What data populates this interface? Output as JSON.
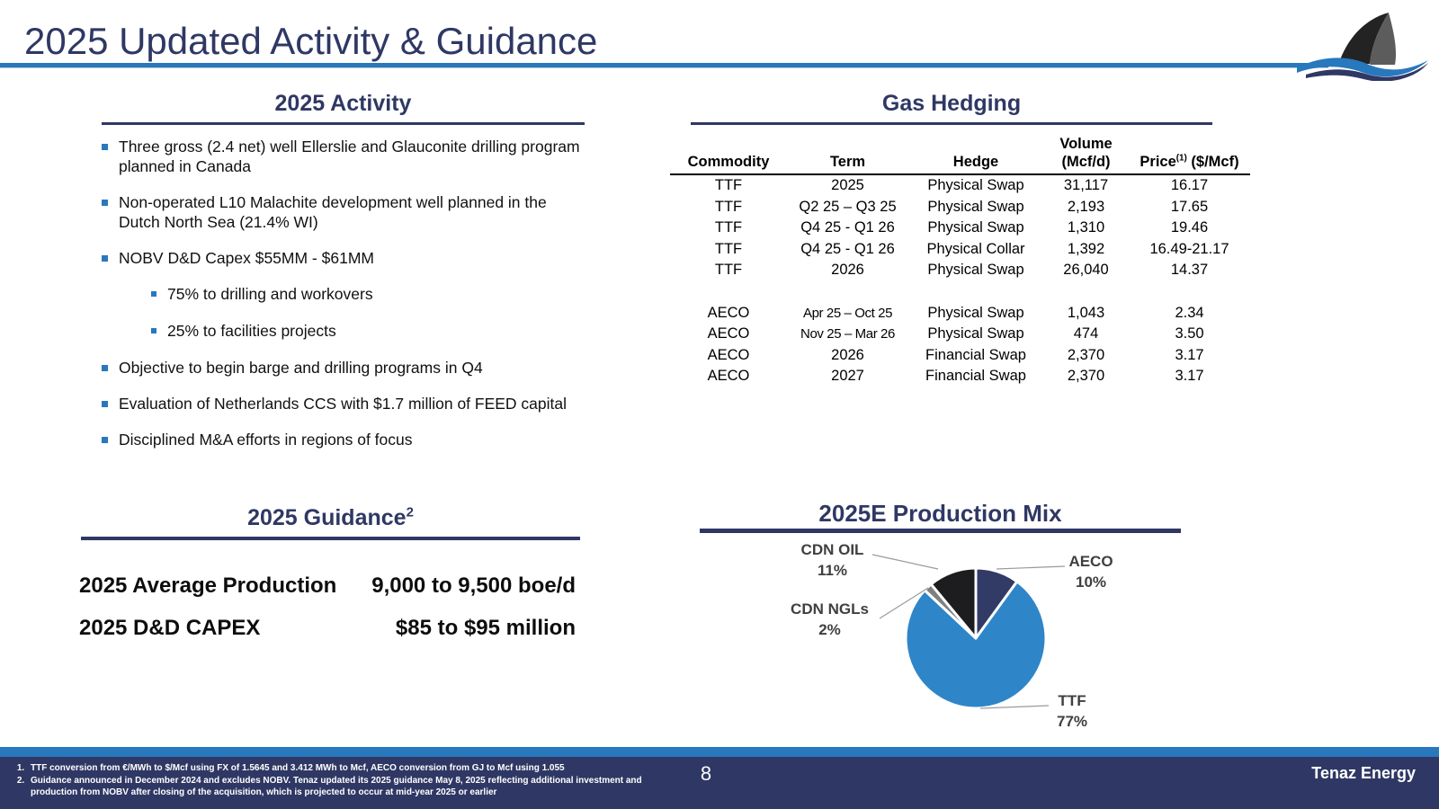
{
  "slide": {
    "title": "2025 Updated Activity & Guidance",
    "page_number": "8",
    "brand": "Tenaz Energy"
  },
  "activity": {
    "heading": "2025 Activity",
    "bullets": [
      {
        "text": "Three gross (2.4 net) well Ellerslie and Glauconite drilling program planned in Canada",
        "level": 1
      },
      {
        "text": "Non-operated L10 Malachite development well planned in the Dutch North Sea (21.4% WI)",
        "level": 1
      },
      {
        "text": "NOBV D&D Capex $55MM - $61MM",
        "level": 1
      },
      {
        "text": "75% to drilling and workovers",
        "level": 2
      },
      {
        "text": "25% to facilities projects",
        "level": 2
      },
      {
        "text": "Objective to begin barge and drilling programs in Q4",
        "level": 1
      },
      {
        "text": "Evaluation of Netherlands CCS with $1.7 million of FEED capital",
        "level": 1
      },
      {
        "text": "Disciplined M&A efforts in regions of focus",
        "level": 1
      }
    ]
  },
  "hedging": {
    "heading": "Gas Hedging",
    "columns": {
      "commodity": "Commodity",
      "term": "Term",
      "hedge": "Hedge",
      "volume_line1": "Volume",
      "volume_line2": "(Mcf/d)",
      "price_label": "Price",
      "price_sup": "(1)",
      "price_unit": " ($/Mcf)"
    },
    "rows": [
      {
        "commodity": "TTF",
        "term": "2025",
        "hedge": "Physical Swap",
        "volume": "31,117",
        "price": "16.17"
      },
      {
        "commodity": "TTF",
        "term": "Q2 25 – Q3 25",
        "hedge": "Physical Swap",
        "volume": "2,193",
        "price": "17.65"
      },
      {
        "commodity": "TTF",
        "term": "Q4 25 - Q1 26",
        "hedge": "Physical Swap",
        "volume": "1,310",
        "price": "19.46"
      },
      {
        "commodity": "TTF",
        "term": "Q4 25 - Q1 26",
        "hedge": "Physical Collar",
        "volume": "1,392",
        "price": "16.49-21.17"
      },
      {
        "commodity": "TTF",
        "term": "2026",
        "hedge": "Physical Swap",
        "volume": "26,040",
        "price": "14.37"
      },
      {
        "commodity": "AECO",
        "term": "Apr 25 – Oct 25",
        "hedge": "Physical Swap",
        "volume": "1,043",
        "price": "2.34"
      },
      {
        "commodity": "AECO",
        "term": "Nov 25 – Mar 26",
        "hedge": "Physical Swap",
        "volume": "474",
        "price": "3.50"
      },
      {
        "commodity": "AECO",
        "term": "2026",
        "hedge": "Financial Swap",
        "volume": "2,370",
        "price": "3.17"
      },
      {
        "commodity": "AECO",
        "term": "2027",
        "hedge": "Financial Swap",
        "volume": "2,370",
        "price": "3.17"
      }
    ]
  },
  "guidance": {
    "heading": "2025 Guidance",
    "heading_sup": "2",
    "rows": [
      {
        "label": "2025 Average Production",
        "value": "9,000 to 9,500 boe/d"
      },
      {
        "label": "2025 D&D CAPEX",
        "value": "$85 to $95 million"
      }
    ]
  },
  "chart_data": {
    "type": "pie",
    "title": "2025E Production Mix",
    "labels": [
      "AECO",
      "TTF",
      "CDN NGLs",
      "CDN OIL"
    ],
    "values": [
      10,
      77,
      2,
      11
    ],
    "pct_labels": [
      "10%",
      "77%",
      "2%",
      "11%"
    ],
    "colors": [
      "#323A66",
      "#2E86C8",
      "#808080",
      "#1D1D1F"
    ],
    "start_angle_deg": 0,
    "direction": "clockwise",
    "slice_gap_stroke": "#ffffff",
    "legend_position": "callout-labels"
  },
  "footnotes": [
    "TTF conversion from €/MWh to $/Mcf using FX of 1.5645 and 3.412 MWh to Mcf, AECO conversion from GJ to Mcf using 1.055",
    "Guidance announced in December 2024 and excludes NOBV. Tenaz updated its 2025 guidance May 8, 2025 reflecting additional investment and production from NOBV after closing of the acquisition, which is projected to occur at mid-year 2025 or earlier"
  ],
  "colors": {
    "heading_navy": "#2F3864",
    "accent_blue": "#2878BE",
    "footer_navy": "#2F3864"
  }
}
